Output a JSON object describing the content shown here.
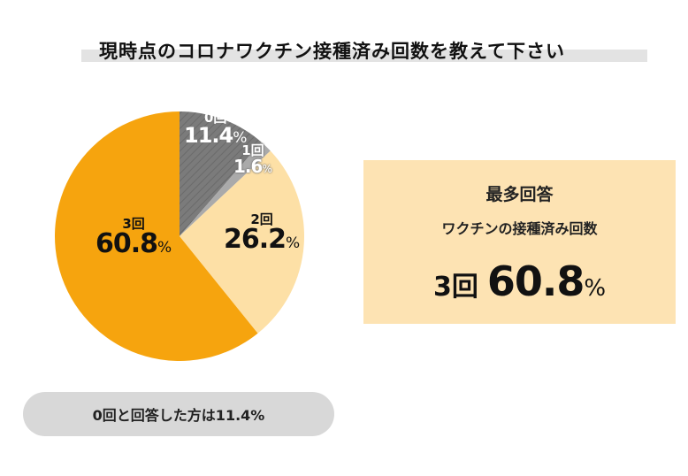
{
  "title": "現時点のコロナワクチン接種済み回数を教えて下さい",
  "chart_data": {
    "type": "pie",
    "categories": [
      "0回",
      "1回",
      "2回",
      "3回"
    ],
    "values": [
      11.4,
      1.6,
      26.2,
      60.8
    ],
    "value_labels": [
      "11.4",
      "1.6",
      "26.2",
      "60.8"
    ],
    "unit": "%",
    "colors": [
      "#7b7b7b",
      "#aaaaaa",
      "#fde0a6",
      "#f6a40e"
    ],
    "title": "現時点のコロナワクチン接種済み回数を教えて下さい",
    "hatched": [
      "0回"
    ]
  },
  "answer": {
    "heading": "最多回答",
    "subheading": "ワクチンの接種済み回数",
    "count": "3回",
    "value": "60.8",
    "unit": "%"
  },
  "note": "0回と回答した方は11.4%"
}
